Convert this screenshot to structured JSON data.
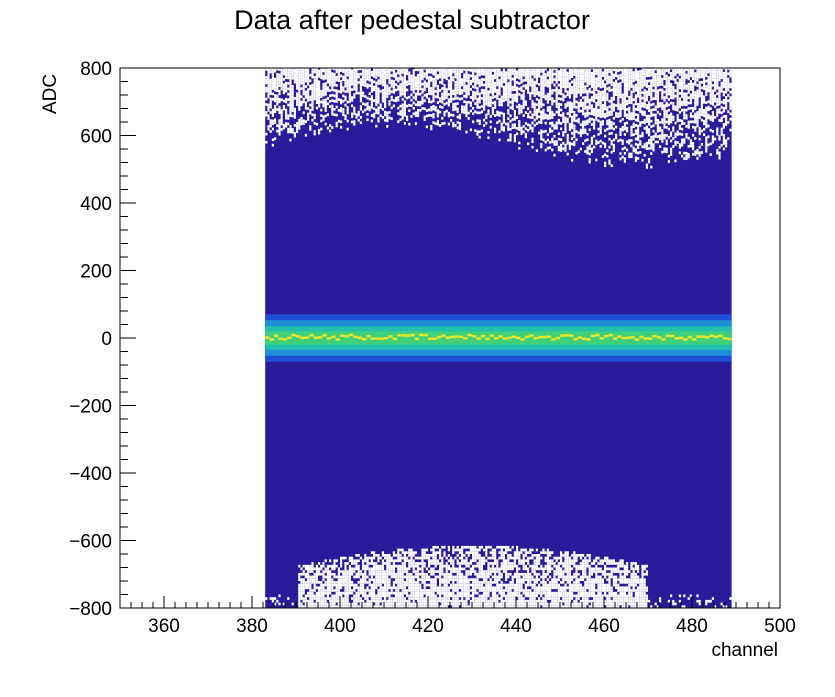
{
  "chart_data": {
    "type": "heatmap",
    "title": "Data after pedestal subtractor",
    "xlabel": "channel",
    "ylabel": "ADC",
    "xlim": [
      350,
      500
    ],
    "ylim": [
      -800,
      800
    ],
    "x_ticks": [
      360,
      380,
      400,
      420,
      440,
      460,
      480,
      500
    ],
    "y_ticks": [
      -800,
      -600,
      -400,
      -200,
      0,
      200,
      400,
      600,
      800
    ],
    "x_tick_labels": [
      "360",
      "380",
      "400",
      "420",
      "440",
      "460",
      "480",
      "500"
    ],
    "y_tick_labels": [
      "−800",
      "−600",
      "−400",
      "−200",
      "0",
      "200",
      "400",
      "600",
      "800"
    ],
    "data_x_range": [
      383,
      489
    ],
    "band_center": 0,
    "band_halfwidth": 70,
    "grid": false,
    "colors": {
      "low": "#2a1b9a",
      "band_1": "#1f4fd8",
      "band_2": "#1e90d8",
      "band_3": "#20c0b0",
      "band_4": "#40d07a",
      "peak": "#e6e62c",
      "frame": "#000000"
    }
  }
}
